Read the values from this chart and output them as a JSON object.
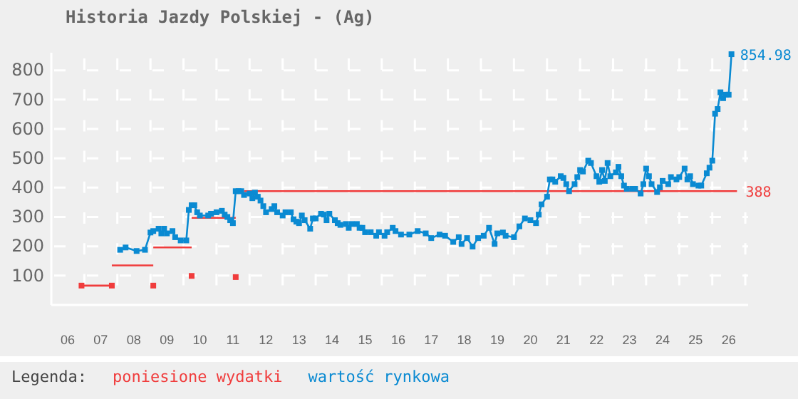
{
  "chart_data": {
    "type": "line",
    "title": "Historia Jazdy Polskiej - (Ag)",
    "legend_title": "Legenda:",
    "legend": "bottom",
    "grid": true,
    "xlim": [
      "2006-01",
      "2027-02"
    ],
    "ylim": [
      0,
      860
    ],
    "yticks": [
      100,
      200,
      300,
      400,
      500,
      600,
      700,
      800
    ],
    "xticks": [
      {
        "value": "2006-07",
        "label": "06"
      },
      {
        "value": "2007-07",
        "label": "07"
      },
      {
        "value": "2008-07",
        "label": "08"
      },
      {
        "value": "2009-07",
        "label": "09"
      },
      {
        "value": "2010-07",
        "label": "10"
      },
      {
        "value": "2011-07",
        "label": "11"
      },
      {
        "value": "2012-07",
        "label": "12"
      },
      {
        "value": "2013-07",
        "label": "13"
      },
      {
        "value": "2014-07",
        "label": "14"
      },
      {
        "value": "2015-07",
        "label": "15"
      },
      {
        "value": "2016-07",
        "label": "16"
      },
      {
        "value": "2017-07",
        "label": "17"
      },
      {
        "value": "2018-07",
        "label": "18"
      },
      {
        "value": "2019-07",
        "label": "19"
      },
      {
        "value": "2020-07",
        "label": "20"
      },
      {
        "value": "2021-07",
        "label": "21"
      },
      {
        "value": "2022-07",
        "label": "22"
      },
      {
        "value": "2023-07",
        "label": "23"
      },
      {
        "value": "2024-07",
        "label": "24"
      },
      {
        "value": "2025-07",
        "label": "25"
      },
      {
        "value": "2026-07",
        "label": "26"
      },
      {
        "value": "2007",
        "label": null
      },
      {
        "value": "2008",
        "label": null
      },
      {
        "value": "2009",
        "label": null
      },
      {
        "value": "2010",
        "label": null
      },
      {
        "value": "2011",
        "label": null
      },
      {
        "value": "2012",
        "label": null
      },
      {
        "value": "2013",
        "label": null
      },
      {
        "value": "2014",
        "label": null
      },
      {
        "value": "2015",
        "label": null
      },
      {
        "value": "2016",
        "label": null
      },
      {
        "value": "2017",
        "label": null
      },
      {
        "value": "2018",
        "label": null
      },
      {
        "value": "2019",
        "label": null
      },
      {
        "value": "2020",
        "label": null
      },
      {
        "value": "2021",
        "label": null
      },
      {
        "value": "2022",
        "label": null
      },
      {
        "value": "2023",
        "label": null
      },
      {
        "value": "2024",
        "label": null
      },
      {
        "value": "2025",
        "label": null
      },
      {
        "value": "2026",
        "label": null
      },
      {
        "value": "2027",
        "label": null
      }
    ],
    "annotations": [
      {
        "text": "854.98",
        "x": "2026-08",
        "y": 854.98
      },
      {
        "text": "388",
        "x": "2026-10",
        "y": 388
      }
    ],
    "series": [
      {
        "name": "poniesione wydatki",
        "type": "line",
        "marker": "none",
        "line_style": "solid",
        "color": "#f03c3c",
        "x": [
          "2006-12",
          "2007-11"
        ],
        "values": [
          66,
          66
        ]
      },
      {
        "type": "line",
        "marker": "none",
        "line_style": "solid",
        "color": "#f03c3c",
        "x": [
          "2007-11",
          "2009-02"
        ],
        "values": [
          135,
          135
        ]
      },
      {
        "type": "line",
        "marker": "none",
        "line_style": "solid",
        "color": "#f03c3c",
        "x": [
          "2009-02",
          "2010-04"
        ],
        "values": [
          196,
          196
        ]
      },
      {
        "type": "line",
        "marker": "none",
        "line_style": "solid",
        "color": "#f03c3c",
        "x": [
          "2010-04",
          "2011-08"
        ],
        "values": [
          297,
          297
        ]
      },
      {
        "type": "line",
        "marker": "none",
        "line_style": "solid",
        "color": "#f03c3c",
        "x": [
          "2011-11",
          "2026-10"
        ],
        "values": [
          388,
          388
        ]
      },
      {
        "type": "scatter",
        "marker": "square",
        "color": "#f03c3c",
        "x": [
          "2006-12",
          "2007-11",
          "2009-02",
          "2010-04",
          "2011-08"
        ],
        "values": [
          66,
          66,
          66,
          99,
          95
        ]
      },
      {
        "name": "wartość rynkowa",
        "type": "line",
        "marker": "square",
        "line_style": "solid",
        "color": "#0a8ad2",
        "x": [
          "2008-02",
          "2008-04",
          "2008-08",
          "2008-11",
          "2009-01",
          "2009-02",
          "2009-04",
          "2009-05",
          "2009-06",
          "2009-07",
          "2009-09",
          "2009-10",
          "2009-12",
          "2010-02",
          "2010-03",
          "2010-04",
          "2010-05",
          "2010-06",
          "2010-07",
          "2010-10",
          "2010-11",
          "2011-01",
          "2011-03",
          "2011-04",
          "2011-05",
          "2011-06",
          "2011-07",
          "2011-08",
          "2011-09",
          "2011-10",
          "2011-11",
          "2012-01",
          "2012-02",
          "2012-03",
          "2012-04",
          "2012-05",
          "2012-06",
          "2012-07",
          "2012-09",
          "2012-10",
          "2012-11",
          "2013-01",
          "2013-02",
          "2013-04",
          "2013-05",
          "2013-06",
          "2013-07",
          "2013-08",
          "2013-09",
          "2013-11",
          "2013-12",
          "2014-01",
          "2014-03",
          "2014-04",
          "2014-05",
          "2014-06",
          "2014-08",
          "2014-09",
          "2014-10",
          "2014-12",
          "2015-01",
          "2015-02",
          "2015-04",
          "2015-05",
          "2015-06",
          "2015-07",
          "2015-09",
          "2015-11",
          "2015-12",
          "2016-02",
          "2016-03",
          "2016-05",
          "2016-06",
          "2016-08",
          "2016-11",
          "2017-02",
          "2017-05",
          "2017-07",
          "2017-10",
          "2017-12",
          "2018-03",
          "2018-05",
          "2018-06",
          "2018-08",
          "2018-10",
          "2018-12",
          "2019-02",
          "2019-04",
          "2019-06",
          "2019-07",
          "2019-09",
          "2019-10",
          "2020-01",
          "2020-03",
          "2020-05",
          "2020-07",
          "2020-09",
          "2020-10",
          "2020-11",
          "2021-01",
          "2021-02",
          "2021-03",
          "2021-04",
          "2021-06",
          "2021-07",
          "2021-08",
          "2021-09",
          "2021-11",
          "2021-12",
          "2022-01",
          "2022-02",
          "2022-04",
          "2022-05",
          "2022-07",
          "2022-08",
          "2022-09",
          "2022-10",
          "2022-11",
          "2022-12",
          "2023-02",
          "2023-03",
          "2023-04",
          "2023-05",
          "2023-06",
          "2023-08",
          "2023-09",
          "2023-11",
          "2023-12",
          "2024-01",
          "2024-02",
          "2024-03",
          "2024-05",
          "2024-06",
          "2024-07",
          "2024-09",
          "2024-10",
          "2024-12",
          "2025-01",
          "2025-03",
          "2025-04",
          "2025-05",
          "2025-06",
          "2025-08",
          "2025-09",
          "2025-11",
          "2025-12",
          "2026-01",
          "2026-02",
          "2026-03",
          "2026-04",
          "2026-05",
          "2026-06",
          "2026-07",
          "2026-08"
        ],
        "values": [
          188,
          196,
          184,
          188,
          247,
          252,
          260,
          244,
          260,
          244,
          252,
          231,
          220,
          220,
          324,
          340,
          340,
          316,
          305,
          305,
          311,
          316,
          321,
          308,
          300,
          289,
          279,
          388,
          388,
          388,
          375,
          380,
          364,
          383,
          369,
          356,
          337,
          316,
          327,
          337,
          316,
          305,
          316,
          316,
          292,
          284,
          279,
          305,
          289,
          260,
          295,
          295,
          311,
          308,
          289,
          311,
          289,
          279,
          273,
          276,
          263,
          276,
          276,
          263,
          263,
          248,
          248,
          236,
          248,
          236,
          248,
          263,
          252,
          240,
          240,
          252,
          244,
          228,
          240,
          236,
          215,
          231,
          208,
          228,
          199,
          228,
          236,
          263,
          208,
          244,
          247,
          236,
          231,
          268,
          295,
          289,
          279,
          308,
          343,
          369,
          428,
          428,
          420,
          439,
          433,
          412,
          388,
          412,
          436,
          460,
          455,
          492,
          484,
          439,
          420,
          460,
          423,
          484,
          439,
          452,
          471,
          439,
          407,
          396,
          396,
          396,
          380,
          412,
          465,
          439,
          412,
          385,
          401,
          423,
          412,
          436,
          428,
          436,
          465,
          428,
          439,
          412,
          407,
          407,
          449,
          468,
          492,
          652,
          668,
          725,
          705,
          717,
          717,
          854.98
        ]
      }
    ]
  }
}
